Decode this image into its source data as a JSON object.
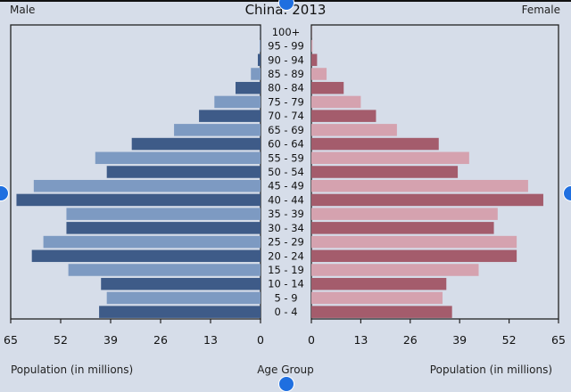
{
  "chart_data": {
    "type": "bar",
    "title": "China: 2013",
    "left_label": "Male",
    "right_label": "Female",
    "xlabel_left": "Population (in millions)",
    "xlabel_center": "Age Group",
    "xlabel_right": "Population (in millions)",
    "xlim": [
      0,
      65
    ],
    "ticks": [
      0,
      13,
      26,
      39,
      52,
      65
    ],
    "categories": [
      "0 - 4",
      "5 - 9",
      "10 - 14",
      "15 - 19",
      "20 - 24",
      "25 - 29",
      "30 - 34",
      "35 - 39",
      "40 - 44",
      "45 - 49",
      "50 - 54",
      "55 - 59",
      "60 - 64",
      "65 - 69",
      "70 - 74",
      "75 - 79",
      "80 - 84",
      "85 - 89",
      "90 - 94",
      "95 - 99",
      "100+"
    ],
    "series": [
      {
        "name": "Male",
        "values": [
          42,
          40,
          41.5,
          50,
          59.5,
          56.5,
          50.5,
          50.5,
          63.5,
          59,
          40,
          43,
          33.5,
          22.5,
          16,
          12,
          6.5,
          2.5,
          0.7,
          0.2,
          0.05
        ]
      },
      {
        "name": "Female",
        "values": [
          37,
          34.5,
          35.5,
          44,
          54,
          54,
          48,
          49,
          61,
          57,
          38.5,
          41.5,
          33.5,
          22.5,
          17,
          13,
          8.5,
          4,
          1.5,
          0.3,
          0.05
        ]
      }
    ],
    "colors": {
      "male_dark": "#3e5b88",
      "male_light": "#7d9ac2",
      "female_dark": "#a45c6c",
      "female_light": "#d5a2af",
      "plot_bg": "#d6dde9",
      "axis": "#222222"
    },
    "grid": false,
    "legend": "none"
  }
}
